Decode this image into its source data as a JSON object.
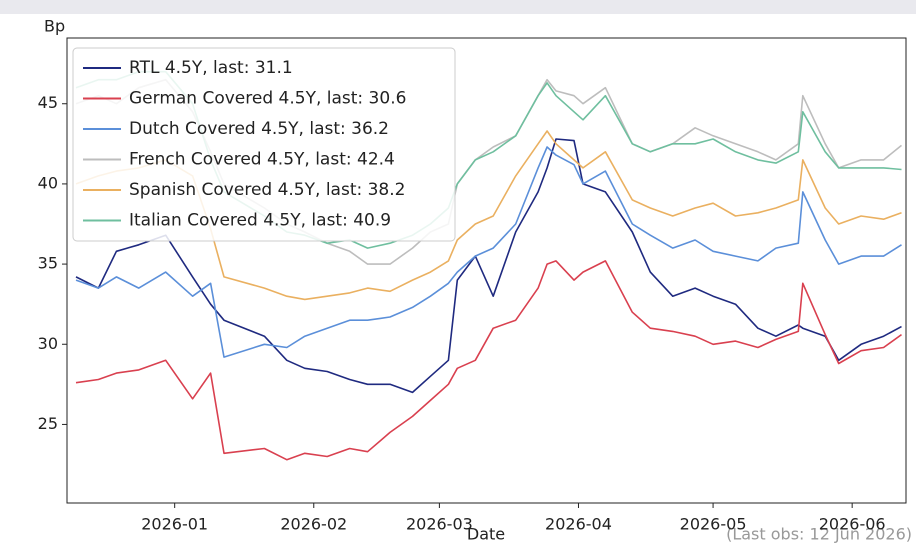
{
  "chart_data": {
    "type": "line",
    "y_label": "Bp",
    "x_label": "Date",
    "note": "(Last obs: 12 Jun 2026)",
    "x": [
      "2025-12-10",
      "2025-12-15",
      "2025-12-19",
      "2025-12-24",
      "2025-12-30",
      "2026-01-05",
      "2026-01-09",
      "2026-01-12",
      "2026-01-21",
      "2026-01-26",
      "2026-01-30",
      "2026-02-04",
      "2026-02-09",
      "2026-02-13",
      "2026-02-18",
      "2026-02-23",
      "2026-02-27",
      "2026-03-03",
      "2026-03-05",
      "2026-03-09",
      "2026-03-13",
      "2026-03-18",
      "2026-03-23",
      "2026-03-25",
      "2026-03-27",
      "2026-03-31",
      "2026-04-02",
      "2026-04-07",
      "2026-04-13",
      "2026-04-17",
      "2026-04-22",
      "2026-04-27",
      "2026-05-01",
      "2026-05-06",
      "2026-05-11",
      "2026-05-15",
      "2026-05-20",
      "2026-05-21",
      "2026-05-26",
      "2026-05-29",
      "2026-06-03",
      "2026-06-08",
      "2026-06-12"
    ],
    "series": [
      {
        "name": "RTL 4.5Y, last: 31.1",
        "color": "#1f2a80",
        "values": [
          34.2,
          33.5,
          35.8,
          36.2,
          36.8,
          34.2,
          32.5,
          31.5,
          30.5,
          29.0,
          28.5,
          28.3,
          27.8,
          27.5,
          27.5,
          27.0,
          28.0,
          29.0,
          34.0,
          35.5,
          33.0,
          37.0,
          39.5,
          41.0,
          42.8,
          42.7,
          40.0,
          39.5,
          37.0,
          34.5,
          33.0,
          33.5,
          33.0,
          32.5,
          31.0,
          30.5,
          31.2,
          31.0,
          30.5,
          29.0,
          30.0,
          30.5,
          31.1
        ]
      },
      {
        "name": "German Covered 4.5Y, last: 30.6",
        "color": "#d9404f",
        "values": [
          27.6,
          27.8,
          28.2,
          28.4,
          29.0,
          26.6,
          28.2,
          23.2,
          23.5,
          22.8,
          23.2,
          23.0,
          23.5,
          23.3,
          24.5,
          25.5,
          26.5,
          27.5,
          28.5,
          29.0,
          31.0,
          31.5,
          33.5,
          35.0,
          35.2,
          34.0,
          34.5,
          35.2,
          32.0,
          31.0,
          30.8,
          30.5,
          30.0,
          30.2,
          29.8,
          30.3,
          30.8,
          33.8,
          30.6,
          28.8,
          29.6,
          29.8,
          30.6
        ]
      },
      {
        "name": "Dutch Covered 4.5Y, last: 36.2",
        "color": "#5b8fd9",
        "values": [
          34.0,
          33.5,
          34.2,
          33.5,
          34.5,
          33.0,
          33.8,
          29.2,
          30.0,
          29.8,
          30.5,
          31.0,
          31.5,
          31.5,
          31.7,
          32.3,
          33.0,
          33.8,
          34.5,
          35.5,
          36.0,
          37.5,
          41.0,
          42.3,
          41.8,
          41.2,
          40.0,
          40.8,
          37.5,
          36.8,
          36.0,
          36.5,
          35.8,
          35.5,
          35.2,
          36.0,
          36.3,
          39.5,
          36.5,
          35.0,
          35.5,
          35.5,
          36.2
        ]
      },
      {
        "name": "French Covered 4.5Y, last: 42.4",
        "color": "#bdbdbd",
        "values": [
          45.0,
          45.5,
          45.0,
          46.0,
          46.5,
          44.5,
          42.0,
          40.0,
          38.5,
          37.5,
          37.0,
          36.3,
          35.8,
          35.0,
          35.0,
          36.0,
          37.0,
          37.5,
          40.0,
          41.5,
          42.3,
          43.0,
          45.5,
          46.5,
          45.8,
          45.5,
          45.0,
          46.0,
          42.5,
          42.0,
          42.5,
          43.5,
          43.0,
          42.5,
          42.0,
          41.5,
          42.5,
          45.5,
          42.5,
          41.0,
          41.5,
          41.5,
          42.4
        ]
      },
      {
        "name": "Spanish Covered 4.5Y, last: 38.2",
        "color": "#eab060",
        "values": [
          40.0,
          40.5,
          40.8,
          41.0,
          41.5,
          40.5,
          37.2,
          34.2,
          33.5,
          33.0,
          32.8,
          33.0,
          33.2,
          33.5,
          33.3,
          34.0,
          34.5,
          35.2,
          36.5,
          37.5,
          38.0,
          40.5,
          42.5,
          43.3,
          42.5,
          41.5,
          41.0,
          42.0,
          39.0,
          38.5,
          38.0,
          38.5,
          38.8,
          38.0,
          38.2,
          38.5,
          39.0,
          41.5,
          38.5,
          37.5,
          38.0,
          37.8,
          38.2
        ]
      },
      {
        "name": "Italian Covered 4.5Y, last: 40.9",
        "color": "#6fbf9f",
        "values": [
          46.0,
          46.5,
          46.5,
          47.0,
          47.0,
          45.0,
          41.5,
          39.5,
          38.0,
          37.0,
          36.8,
          36.3,
          36.5,
          36.0,
          36.3,
          36.8,
          37.5,
          38.5,
          40.0,
          41.5,
          42.0,
          43.0,
          45.5,
          46.3,
          45.5,
          44.5,
          44.0,
          45.5,
          42.5,
          42.0,
          42.5,
          42.5,
          42.8,
          42.0,
          41.5,
          41.3,
          42.0,
          44.5,
          42.0,
          41.0,
          41.0,
          41.0,
          40.9
        ]
      }
    ],
    "xlim": [
      "2025-12-08",
      "2026-06-13"
    ],
    "xticks": [
      {
        "value": "2026-01-01",
        "label": "2026-01"
      },
      {
        "value": "2026-02-01",
        "label": "2026-02"
      },
      {
        "value": "2026-03-01",
        "label": "2026-03"
      },
      {
        "value": "2026-04-01",
        "label": "2026-04"
      },
      {
        "value": "2026-05-01",
        "label": "2026-05"
      },
      {
        "value": "2026-06-01",
        "label": "2026-06"
      }
    ],
    "ylim": [
      20.1,
      49.1
    ],
    "yticks": [
      25,
      30,
      35,
      40,
      45
    ],
    "grid": false,
    "legend": "upper left"
  }
}
